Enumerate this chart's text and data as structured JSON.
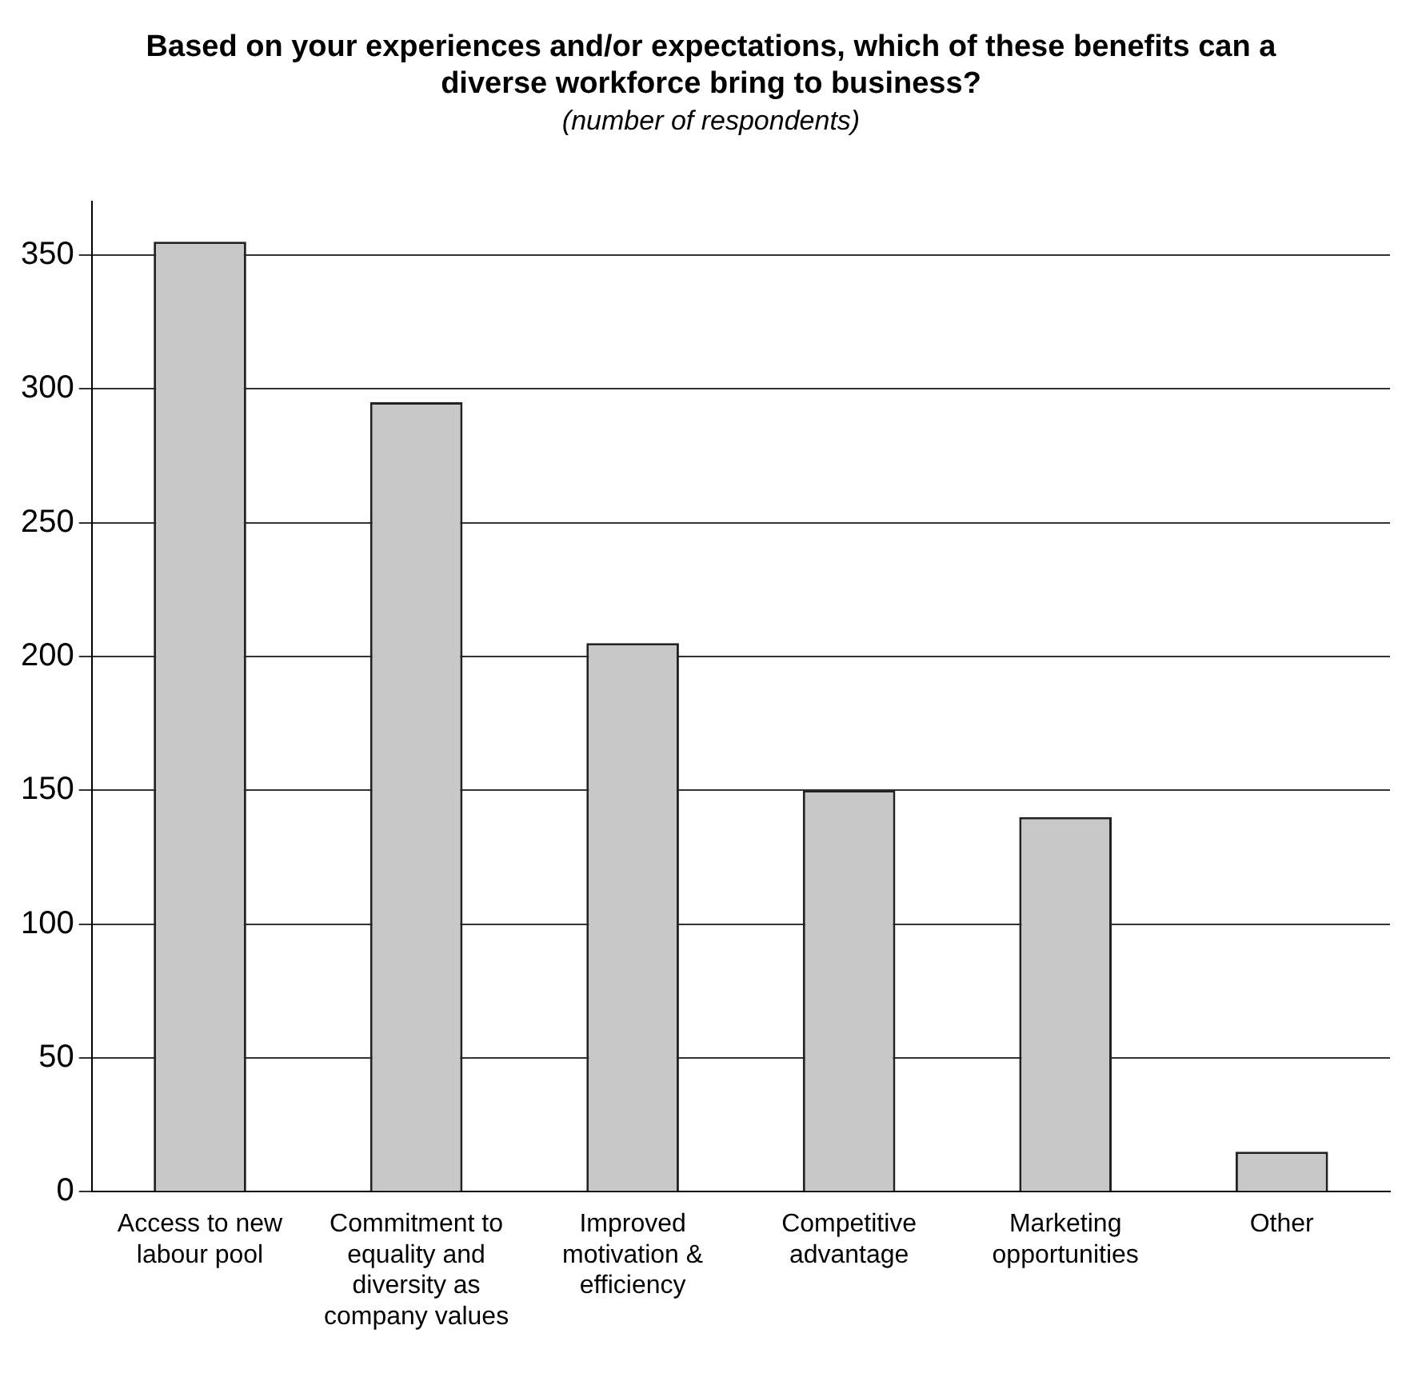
{
  "chart_data": {
    "type": "bar",
    "title": "Based on your experiences and/or expectations, which of these benefits can a diverse workforce bring to business?",
    "subtitle": "(number of respondents)",
    "categories": [
      "Access to new labour pool",
      "Commitment to equality and diversity as company values",
      "Improved motivation & efficiency",
      "Competitive advantage",
      "Marketing opportunities",
      "Other"
    ],
    "values": [
      355,
      295,
      205,
      150,
      140,
      15
    ],
    "color": "#c8c8c8",
    "ylim": [
      0,
      370
    ],
    "yticks": [
      0,
      50,
      100,
      150,
      200,
      250,
      300,
      350
    ],
    "grid": "y",
    "legend": false
  }
}
